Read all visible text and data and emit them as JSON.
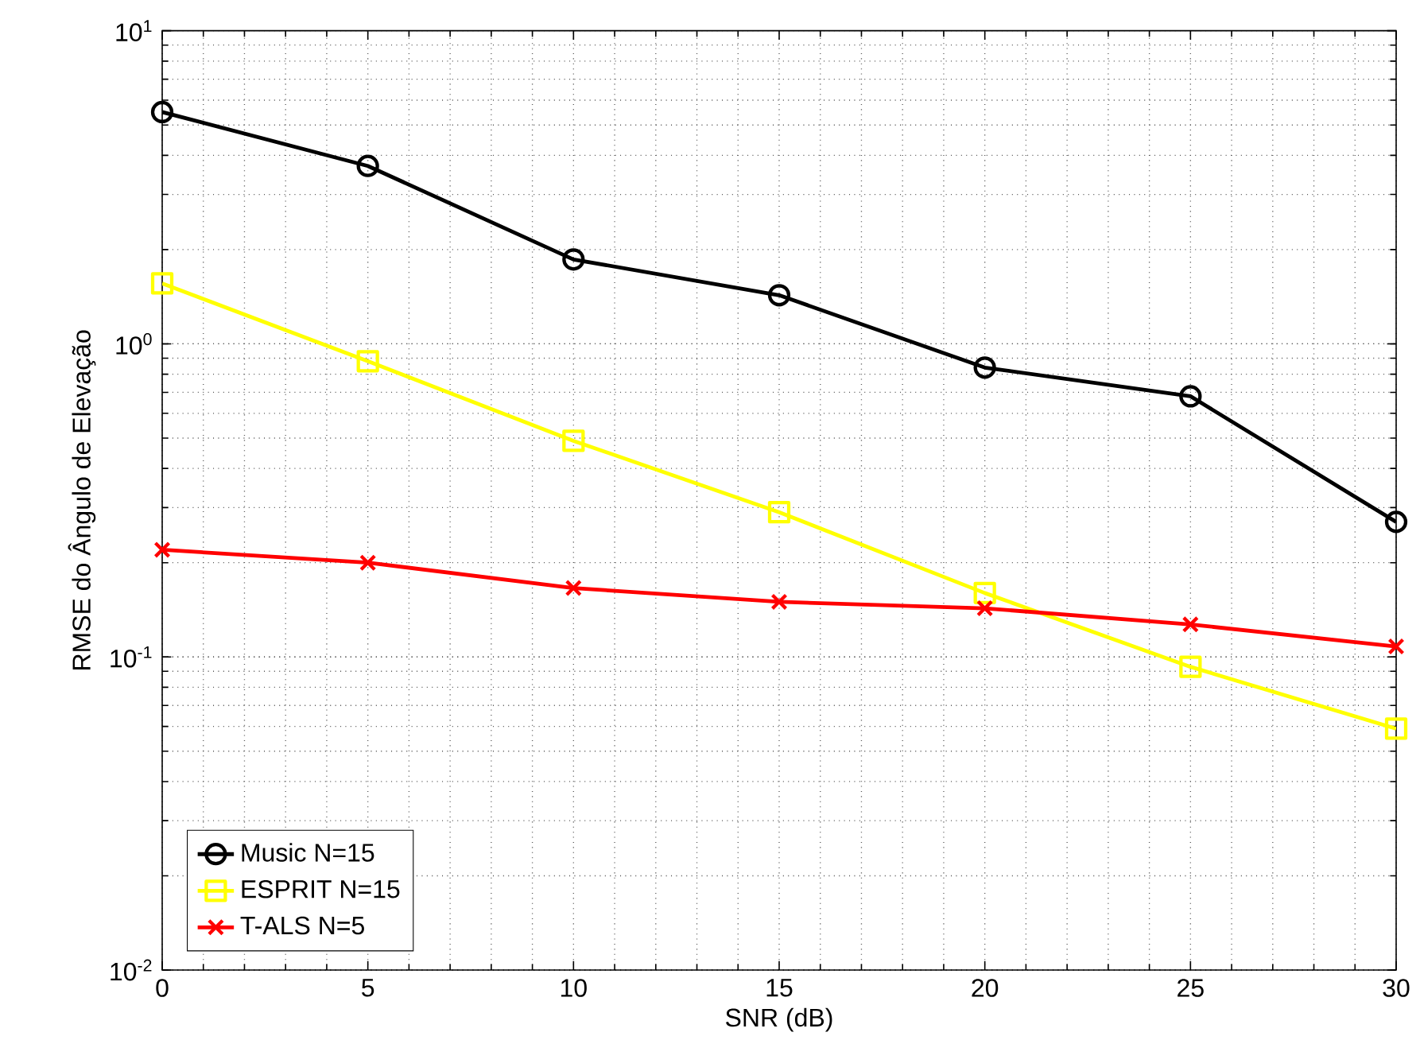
{
  "chart_data": {
    "type": "line",
    "xlabel": "SNR (dB)",
    "ylabel": "RMSE do Ângulo de Elevação",
    "x": [
      0,
      5,
      10,
      15,
      20,
      25,
      30
    ],
    "series": [
      {
        "name": "Music N=15",
        "color": "#000000",
        "marker": "circle",
        "values": [
          5.5,
          3.7,
          1.86,
          1.43,
          0.84,
          0.68,
          0.27
        ]
      },
      {
        "name": "ESPRIT N=15",
        "color": "#ffff00",
        "marker": "square",
        "values": [
          1.56,
          0.88,
          0.49,
          0.29,
          0.16,
          0.093,
          0.059
        ]
      },
      {
        "name": "T-ALS N=5",
        "color": "#ff0000",
        "marker": "cross",
        "values": [
          0.22,
          0.2,
          0.166,
          0.15,
          0.143,
          0.127,
          0.108
        ]
      }
    ],
    "log": "y",
    "xlim": [
      0,
      30
    ],
    "ylim": [
      0.01,
      10
    ],
    "xticks": [
      0,
      5,
      10,
      15,
      20,
      25,
      30
    ],
    "yticks": [
      {
        "value": 0.01,
        "label": "10$^{-2}$"
      },
      {
        "value": 0.1,
        "label": "10$^{-1}$"
      },
      {
        "value": 1,
        "label": "10$^{0}$"
      },
      {
        "value": 10,
        "label": "10$^{1}$"
      }
    ],
    "grid": true,
    "legend": "bottom left",
    "line_style": "solid"
  }
}
